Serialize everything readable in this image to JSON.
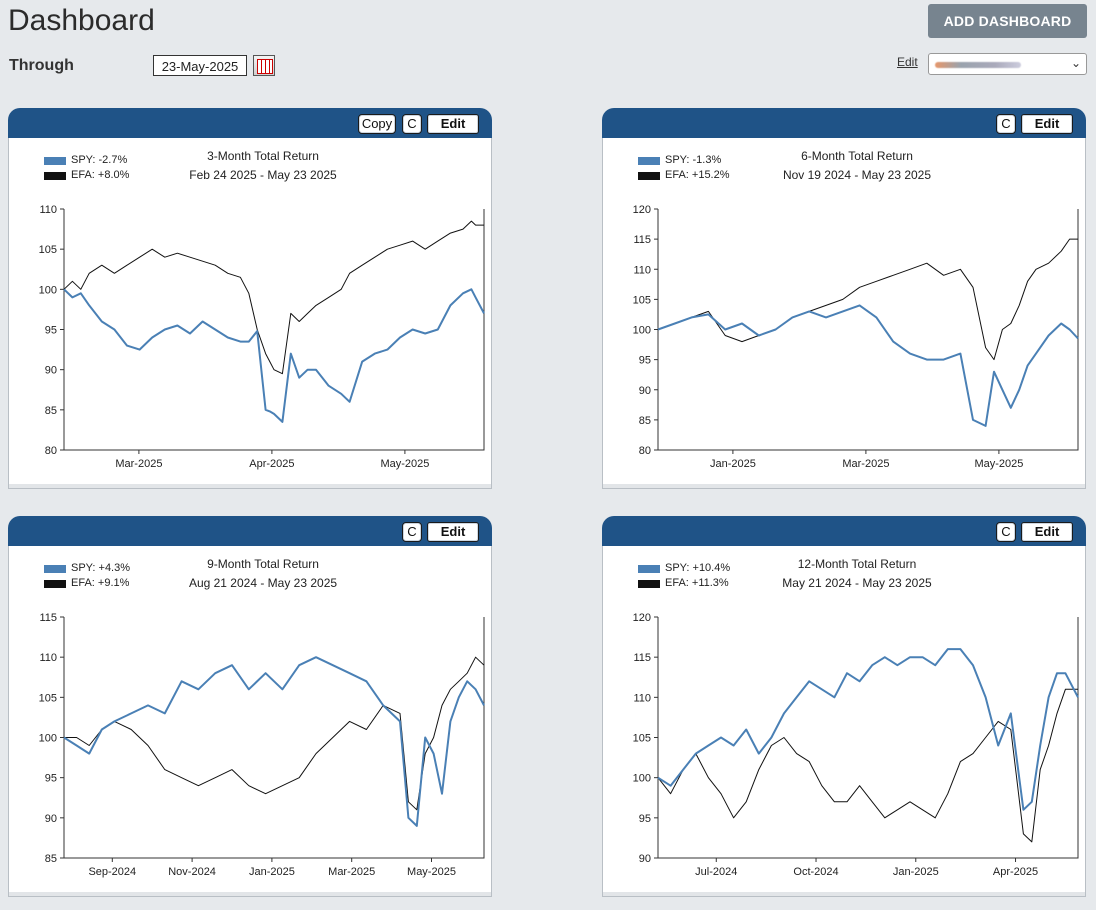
{
  "page": {
    "title": "Dashboard",
    "through_label": "Through",
    "through_date": "23-May-2025",
    "add_button": "ADD DASHBOARD",
    "edit_link": "Edit"
  },
  "panels": [
    {
      "buttons": {
        "copy": "Copy",
        "c": "C",
        "edit": "Edit"
      },
      "show_copy": true
    },
    {
      "buttons": {
        "c": "C",
        "edit": "Edit"
      },
      "show_copy": false
    },
    {
      "buttons": {
        "c": "C",
        "edit": "Edit"
      },
      "show_copy": false
    },
    {
      "buttons": {
        "c": "C",
        "edit": "Edit"
      },
      "show_copy": false
    }
  ],
  "chart_data": [
    {
      "type": "line",
      "title": "3-Month Total Return",
      "subtitle": "Feb 24 2025 - May 23 2025",
      "legend_placement": "top-left",
      "legend": [
        "SPY: -2.7%",
        "EFA: +8.0%"
      ],
      "ylim": [
        80,
        110
      ],
      "yticks": [
        "80",
        "85",
        "90",
        "95",
        "100",
        "105",
        "110"
      ],
      "xticks": [
        "Mar-2025",
        "Apr-2025",
        "May-2025"
      ],
      "x": [
        0,
        0.02,
        0.04,
        0.06,
        0.09,
        0.12,
        0.15,
        0.18,
        0.21,
        0.24,
        0.27,
        0.3,
        0.33,
        0.36,
        0.39,
        0.42,
        0.44,
        0.46,
        0.48,
        0.49,
        0.5,
        0.52,
        0.54,
        0.56,
        0.58,
        0.6,
        0.63,
        0.66,
        0.68,
        0.71,
        0.74,
        0.77,
        0.8,
        0.83,
        0.86,
        0.89,
        0.92,
        0.95,
        0.97,
        0.98,
        1.0
      ],
      "series": [
        {
          "name": "SPY",
          "color": "#4a80b5",
          "values": [
            100,
            99,
            99.5,
            98,
            96,
            95,
            93,
            92.5,
            94,
            95,
            95.5,
            94.5,
            96,
            95,
            94,
            93.5,
            93.5,
            94.8,
            85,
            84.8,
            84.5,
            83.5,
            92,
            89,
            90,
            90,
            88,
            87,
            86,
            91,
            92,
            92.5,
            94,
            95,
            94.5,
            95,
            98,
            99.5,
            100,
            99,
            97
          ]
        },
        {
          "name": "EFA",
          "color": "#111111",
          "values": [
            100,
            101,
            100,
            102,
            103,
            102,
            103,
            104,
            105,
            104,
            104.5,
            104,
            103.5,
            103,
            102,
            101.5,
            99.5,
            95,
            92,
            91,
            90,
            89.5,
            97,
            96,
            97,
            98,
            99,
            100,
            102,
            103,
            104,
            105,
            105.5,
            106,
            105,
            106,
            107,
            107.5,
            108.5,
            108,
            108
          ]
        }
      ]
    },
    {
      "type": "line",
      "title": "6-Month Total Return",
      "subtitle": "Nov 19 2024 - May 23 2025",
      "legend_placement": "top-left",
      "legend": [
        "SPY: -1.3%",
        "EFA: +15.2%"
      ],
      "ylim": [
        80,
        120
      ],
      "yticks": [
        "80",
        "85",
        "90",
        "95",
        "100",
        "105",
        "110",
        "115",
        "120"
      ],
      "xticks": [
        "Jan-2025",
        "Mar-2025",
        "May-2025"
      ],
      "x": [
        0,
        0.04,
        0.08,
        0.12,
        0.16,
        0.2,
        0.24,
        0.28,
        0.32,
        0.36,
        0.4,
        0.44,
        0.48,
        0.52,
        0.56,
        0.6,
        0.64,
        0.68,
        0.72,
        0.75,
        0.78,
        0.8,
        0.82,
        0.84,
        0.86,
        0.88,
        0.9,
        0.93,
        0.96,
        0.98,
        1.0
      ],
      "series": [
        {
          "name": "SPY",
          "color": "#4a80b5",
          "values": [
            100,
            101,
            102,
            102.5,
            100,
            101,
            99,
            100,
            102,
            103,
            102,
            103,
            104,
            102,
            98,
            96,
            95,
            95,
            96,
            85,
            84,
            93,
            90,
            87,
            90,
            94,
            96,
            99,
            101,
            100,
            98.5
          ]
        },
        {
          "name": "EFA",
          "color": "#111111",
          "values": [
            100,
            101,
            102,
            103,
            99,
            98,
            99,
            100,
            102,
            103,
            104,
            105,
            107,
            108,
            109,
            110,
            111,
            109,
            110,
            107,
            97,
            95,
            100,
            101,
            104,
            108,
            110,
            111,
            113,
            115,
            115
          ]
        }
      ]
    },
    {
      "type": "line",
      "title": "9-Month Total Return",
      "subtitle": "Aug 21 2024 - May 23 2025",
      "legend_placement": "top-left",
      "legend": [
        "SPY: +4.3%",
        "EFA: +9.1%"
      ],
      "ylim": [
        85,
        115
      ],
      "yticks": [
        "85",
        "90",
        "95",
        "100",
        "105",
        "110",
        "115"
      ],
      "xticks": [
        "Sep-2024",
        "Nov-2024",
        "Jan-2025",
        "Mar-2025",
        "May-2025"
      ],
      "x": [
        0,
        0.03,
        0.06,
        0.09,
        0.12,
        0.16,
        0.2,
        0.24,
        0.28,
        0.32,
        0.36,
        0.4,
        0.44,
        0.48,
        0.52,
        0.56,
        0.6,
        0.64,
        0.68,
        0.72,
        0.76,
        0.8,
        0.82,
        0.84,
        0.86,
        0.88,
        0.9,
        0.92,
        0.94,
        0.96,
        0.98,
        1.0
      ],
      "series": [
        {
          "name": "SPY",
          "color": "#4a80b5",
          "values": [
            100,
            99,
            98,
            101,
            102,
            103,
            104,
            103,
            107,
            106,
            108,
            109,
            106,
            108,
            106,
            109,
            110,
            109,
            108,
            107,
            104,
            102,
            90,
            89,
            100,
            98,
            93,
            102,
            105,
            107,
            106,
            104
          ]
        },
        {
          "name": "EFA",
          "color": "#111111",
          "values": [
            100,
            100,
            99,
            101,
            102,
            101,
            99,
            96,
            95,
            94,
            95,
            96,
            94,
            93,
            94,
            95,
            98,
            100,
            102,
            101,
            104,
            103,
            92,
            91,
            98,
            100,
            104,
            106,
            107,
            108,
            110,
            109
          ]
        }
      ]
    },
    {
      "type": "line",
      "title": "12-Month Total Return",
      "subtitle": "May 21 2024 - May 23 2025",
      "legend_placement": "top-left",
      "legend": [
        "SPY: +10.4%",
        "EFA: +11.3%"
      ],
      "ylim": [
        90,
        120
      ],
      "yticks": [
        "90",
        "95",
        "100",
        "105",
        "110",
        "115",
        "120"
      ],
      "xticks": [
        "Jul-2024",
        "Oct-2024",
        "Jan-2025",
        "Apr-2025"
      ],
      "x": [
        0,
        0.03,
        0.06,
        0.09,
        0.12,
        0.15,
        0.18,
        0.21,
        0.24,
        0.27,
        0.3,
        0.33,
        0.36,
        0.39,
        0.42,
        0.45,
        0.48,
        0.51,
        0.54,
        0.57,
        0.6,
        0.63,
        0.66,
        0.69,
        0.72,
        0.75,
        0.78,
        0.81,
        0.84,
        0.87,
        0.89,
        0.91,
        0.93,
        0.95,
        0.97,
        1.0
      ],
      "series": [
        {
          "name": "SPY",
          "color": "#4a80b5",
          "values": [
            100,
            99,
            101,
            103,
            104,
            105,
            104,
            106,
            103,
            105,
            108,
            110,
            112,
            111,
            110,
            113,
            112,
            114,
            115,
            114,
            115,
            115,
            114,
            116,
            116,
            114,
            110,
            104,
            108,
            96,
            97,
            104,
            110,
            113,
            113,
            110
          ]
        },
        {
          "name": "EFA",
          "color": "#111111",
          "values": [
            100,
            98,
            101,
            103,
            100,
            98,
            95,
            97,
            101,
            104,
            105,
            103,
            102,
            99,
            97,
            97,
            99,
            97,
            95,
            96,
            97,
            96,
            95,
            98,
            102,
            103,
            105,
            107,
            106,
            93,
            92,
            101,
            104,
            108,
            111,
            111
          ]
        }
      ]
    }
  ]
}
